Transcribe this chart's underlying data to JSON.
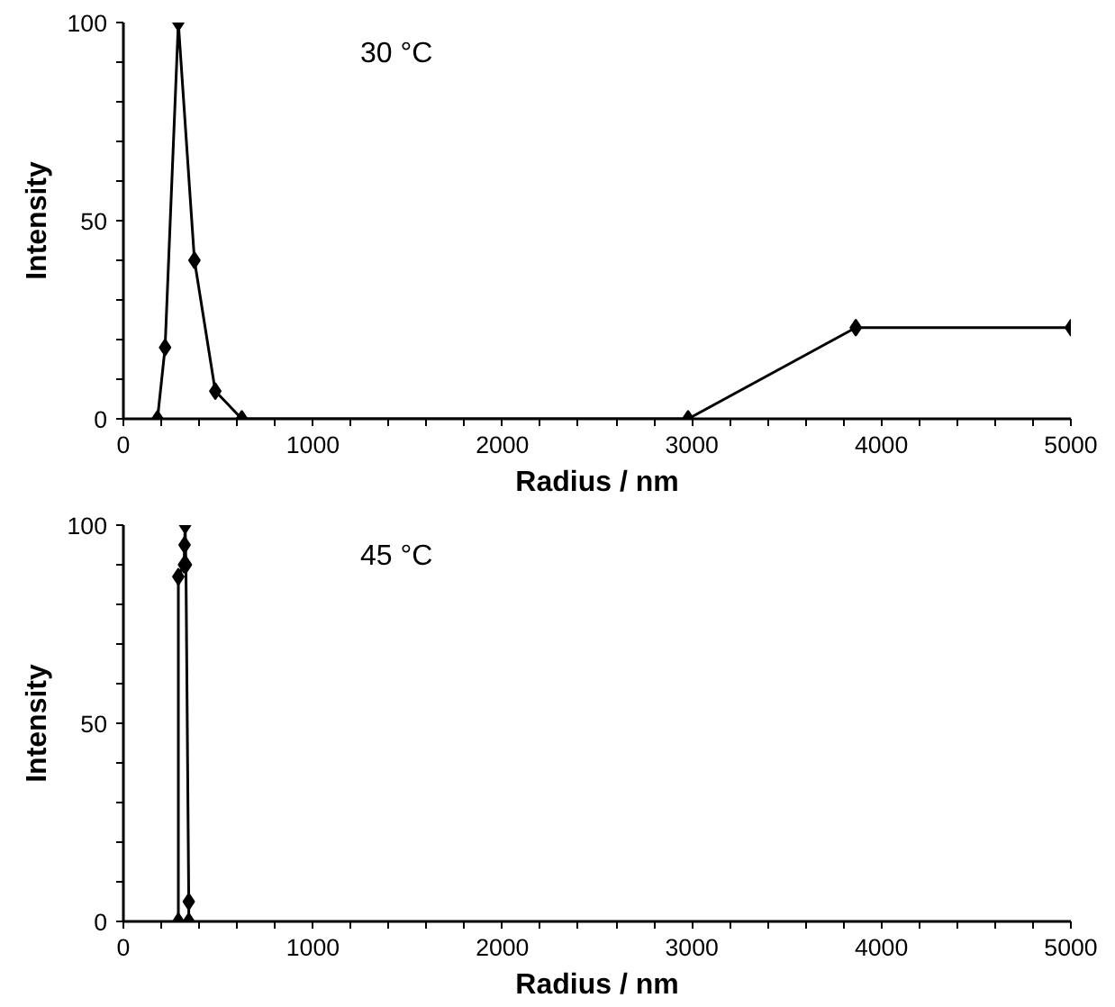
{
  "chart_data": [
    {
      "type": "line",
      "marker": "diamond",
      "line_style": "solid",
      "grid": false,
      "xlabel": "Radius / nm",
      "ylabel": "Intensity",
      "annotations": [
        "30 °C"
      ],
      "x": [
        180,
        220,
        290,
        375,
        485,
        625,
        2980,
        3865,
        5000
      ],
      "series": [
        {
          "color": "#000000",
          "values": [
            0,
            18,
            100,
            40,
            7,
            0,
            0,
            23,
            23
          ]
        }
      ],
      "xlim": [
        0,
        5000
      ],
      "ylim": [
        0,
        100
      ],
      "xticks": [
        0,
        {
          "value": 200,
          "label": null
        },
        {
          "value": 400,
          "label": null
        },
        {
          "value": 600,
          "label": null
        },
        {
          "value": 800,
          "label": null
        },
        1000,
        {
          "value": 1200,
          "label": null
        },
        {
          "value": 1400,
          "label": null
        },
        {
          "value": 1600,
          "label": null
        },
        {
          "value": 1800,
          "label": null
        },
        2000,
        {
          "value": 2200,
          "label": null
        },
        {
          "value": 2400,
          "label": null
        },
        {
          "value": 2600,
          "label": null
        },
        {
          "value": 2800,
          "label": null
        },
        3000,
        {
          "value": 3200,
          "label": null
        },
        {
          "value": 3400,
          "label": null
        },
        {
          "value": 3600,
          "label": null
        },
        {
          "value": 3800,
          "label": null
        },
        4000,
        {
          "value": 4200,
          "label": null
        },
        {
          "value": 4400,
          "label": null
        },
        {
          "value": 4600,
          "label": null
        },
        {
          "value": 4800,
          "label": null
        },
        5000
      ],
      "yticks": [
        0,
        {
          "value": 10,
          "label": null
        },
        {
          "value": 20,
          "label": null
        },
        {
          "value": 30,
          "label": null
        },
        {
          "value": 40,
          "label": null
        },
        50,
        {
          "value": 60,
          "label": null
        },
        {
          "value": 70,
          "label": null
        },
        {
          "value": 80,
          "label": null
        },
        {
          "value": 90,
          "label": null
        },
        100
      ]
    },
    {
      "type": "line",
      "marker": "diamond",
      "line_style": "solid",
      "grid": false,
      "xlabel": "Radius / nm",
      "ylabel": "Intensity",
      "annotations": [
        "45 °C"
      ],
      "x": [
        290,
        290,
        320,
        323,
        326,
        330,
        345,
        345
      ],
      "series": [
        {
          "color": "#000000",
          "values": [
            0,
            87,
            90,
            95,
            100,
            90,
            5,
            0
          ]
        }
      ],
      "xlim": [
        0,
        5000
      ],
      "ylim": [
        0,
        100
      ],
      "xticks": [
        0,
        {
          "value": 200,
          "label": null
        },
        {
          "value": 400,
          "label": null
        },
        {
          "value": 600,
          "label": null
        },
        {
          "value": 800,
          "label": null
        },
        1000,
        {
          "value": 1200,
          "label": null
        },
        {
          "value": 1400,
          "label": null
        },
        {
          "value": 1600,
          "label": null
        },
        {
          "value": 1800,
          "label": null
        },
        2000,
        {
          "value": 2200,
          "label": null
        },
        {
          "value": 2400,
          "label": null
        },
        {
          "value": 2600,
          "label": null
        },
        {
          "value": 2800,
          "label": null
        },
        3000,
        {
          "value": 3200,
          "label": null
        },
        {
          "value": 3400,
          "label": null
        },
        {
          "value": 3600,
          "label": null
        },
        {
          "value": 3800,
          "label": null
        },
        4000,
        {
          "value": 4200,
          "label": null
        },
        {
          "value": 4400,
          "label": null
        },
        {
          "value": 4600,
          "label": null
        },
        {
          "value": 4800,
          "label": null
        },
        5000
      ],
      "yticks": [
        0,
        {
          "value": 10,
          "label": null
        },
        {
          "value": 20,
          "label": null
        },
        {
          "value": 30,
          "label": null
        },
        {
          "value": 40,
          "label": null
        },
        50,
        {
          "value": 60,
          "label": null
        },
        {
          "value": 70,
          "label": null
        },
        {
          "value": 80,
          "label": null
        },
        {
          "value": 90,
          "label": null
        },
        100
      ]
    }
  ]
}
